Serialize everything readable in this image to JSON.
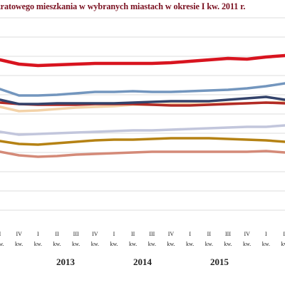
{
  "chart_data": {
    "type": "line",
    "title": "kratowego mieszkania w wybranych miastach w okresie I kw. 2011 r.",
    "x_ticks": [
      [
        "I",
        "kw."
      ],
      [
        "IV",
        "kw."
      ],
      [
        "I",
        "kw."
      ],
      [
        "II",
        "kw."
      ],
      [
        "III",
        "kw."
      ],
      [
        "IV",
        "kw."
      ],
      [
        "I",
        "kw."
      ],
      [
        "II",
        "kw."
      ],
      [
        "III",
        "kw."
      ],
      [
        "IV",
        "kw."
      ],
      [
        "I",
        "kw."
      ],
      [
        "II",
        "kw."
      ],
      [
        "III",
        "kw."
      ],
      [
        "IV",
        "kw."
      ],
      [
        "I",
        "kw."
      ],
      [
        "II",
        "kw."
      ]
    ],
    "years": [
      "2013",
      "2014",
      "2015"
    ],
    "grid": true,
    "y_values_note": "",
    "series": [
      {
        "color": "#d8141f",
        "values": [
          84,
          90,
          92,
          91,
          90,
          89,
          89,
          89,
          89,
          88,
          86,
          84,
          82,
          83,
          80,
          78
        ]
      },
      {
        "color": "#7396be",
        "values": [
          125,
          134,
          134,
          133,
          131,
          129,
          129,
          128,
          129,
          129,
          128,
          127,
          126,
          124,
          121,
          117
        ]
      },
      {
        "color": "#33426a",
        "values": [
          140,
          146,
          146,
          145,
          145,
          145,
          145,
          144,
          143,
          142,
          142,
          142,
          140,
          138,
          136,
          140
        ]
      },
      {
        "color": "#b22a25",
        "values": [
          144,
          146,
          147,
          147,
          147,
          146,
          146,
          146,
          147,
          148,
          148,
          147,
          146,
          145,
          144,
          145
        ]
      },
      {
        "color": "#f3d2a8",
        "values": [
          150,
          156,
          155,
          153,
          151,
          150,
          149,
          147,
          147,
          146,
          146,
          146,
          145,
          145,
          144,
          143
        ]
      },
      {
        "color": "#c2c6dc",
        "values": [
          185,
          189,
          188,
          187,
          186,
          185,
          184,
          183,
          183,
          182,
          181,
          180,
          179,
          178,
          178,
          176
        ]
      },
      {
        "color": "#b58214",
        "values": [
          198,
          202,
          203,
          201,
          199,
          197,
          196,
          196,
          195,
          194,
          194,
          194,
          195,
          196,
          197,
          199
        ]
      },
      {
        "color": "#d48a78",
        "values": [
          213,
          218,
          220,
          219,
          217,
          216,
          215,
          214,
          213,
          213,
          213,
          213,
          213,
          213,
          212,
          214
        ]
      }
    ]
  }
}
